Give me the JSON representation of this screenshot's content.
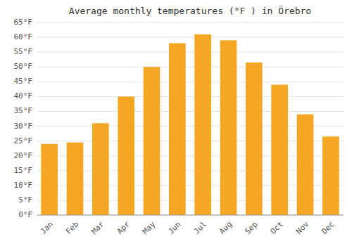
{
  "chart_data": {
    "type": "bar",
    "title": "Average monthly temperatures (°F ) in Örebro",
    "categories": [
      "Jan",
      "Feb",
      "Mar",
      "Apr",
      "May",
      "Jun",
      "Jul",
      "Aug",
      "Sep",
      "Oct",
      "Nov",
      "Dec"
    ],
    "values": [
      24,
      24.5,
      31,
      40,
      50,
      58,
      61,
      59,
      51.5,
      44,
      34,
      26.5
    ],
    "color": "#F5A623",
    "ylim": [
      0,
      65
    ],
    "yticks": [
      {
        "value": 0,
        "label": "0°F"
      },
      {
        "value": 5,
        "label": "5°F"
      },
      {
        "value": 10,
        "label": "10°F"
      },
      {
        "value": 15,
        "label": "15°F"
      },
      {
        "value": 20,
        "label": "20°F"
      },
      {
        "value": 25,
        "label": "25°F"
      },
      {
        "value": 30,
        "label": "30°F"
      },
      {
        "value": 35,
        "label": "35°F"
      },
      {
        "value": 40,
        "label": "40°F"
      },
      {
        "value": 45,
        "label": "45°F"
      },
      {
        "value": 50,
        "label": "50°F"
      },
      {
        "value": 55,
        "label": "55°F"
      },
      {
        "value": 60,
        "label": "60°F"
      },
      {
        "value": 65,
        "label": "65°F"
      }
    ],
    "grid": true
  }
}
